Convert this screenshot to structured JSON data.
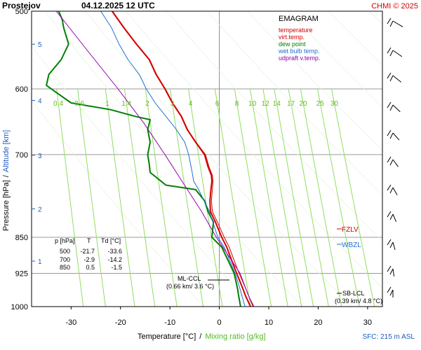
{
  "header": {
    "station": "Prostejov",
    "datetime": "04.12.2025 12 UTC",
    "credit": "CHMI © 2025"
  },
  "legend": {
    "title": "EMAGRAM",
    "items": [
      {
        "label": "temperature",
        "color": "#d40000"
      },
      {
        "label": "virt.temp.",
        "color": "#d40000"
      },
      {
        "label": "dew point",
        "color": "#008000"
      },
      {
        "label": "wet bulb temp.",
        "color": "#1f6fd0"
      },
      {
        "label": "udpraft v.temp.",
        "color": "#9400b0"
      }
    ]
  },
  "axes": {
    "xlabel_temperature": "Temperature [°C]",
    "xlabel_sep": "/",
    "xlabel_mixing": "Mixing ratio [g/kg]",
    "ylabel_pressure": "Pressure [hPa]",
    "ylabel_sep": "/",
    "ylabel_altitude": "Altitude [km]",
    "surface_note": "SFC: 215 m ASL"
  },
  "table": {
    "header": [
      "p [hPa]",
      "T",
      "Td [°C]"
    ],
    "rows": [
      [
        "500",
        "-21.7",
        "-33.6"
      ],
      [
        "700",
        "-2.9",
        "-14.2"
      ],
      [
        "850",
        "0.5",
        "-1.5"
      ]
    ]
  },
  "annotations": {
    "fzlv": "FZLV",
    "wbzl": "WBZL",
    "ml_ccl": "ML-CCL",
    "ml_ccl_value": "(0.66 km/ 3.6 °C)",
    "sb_lcl": "SB-LCL",
    "sb_lcl_value": "(0.39 km/ 4.8 °C)"
  },
  "chart_data": {
    "type": "line",
    "title": "EMAGRAM",
    "x_axis": {
      "label": "Temperature [°C]",
      "range": [
        -38,
        33
      ],
      "ticks": [
        -30,
        -20,
        -10,
        0,
        10,
        20,
        30
      ]
    },
    "y_axis": {
      "label": "Pressure [hPa]",
      "scale": "log",
      "range": [
        1000,
        500
      ],
      "ticks": [
        500,
        600,
        700,
        850,
        925,
        1000
      ]
    },
    "altitude_ticks_km": [
      1,
      2,
      3,
      4,
      5
    ],
    "mixing_ratio_labels": [
      "0.4",
      "0.6",
      "1",
      "1.4",
      "2",
      "3",
      "4",
      "6",
      "8",
      "10",
      "12",
      "14",
      "17",
      "20",
      "25",
      "30"
    ],
    "series": [
      {
        "name": "temperature",
        "color": "#d40000",
        "points": [
          [
            1000,
            6.3
          ],
          [
            975,
            5.3
          ],
          [
            960,
            4.8
          ],
          [
            925,
            3.5
          ],
          [
            900,
            2.6
          ],
          [
            870,
            1.5
          ],
          [
            850,
            0.5
          ],
          [
            820,
            -0.8
          ],
          [
            800,
            -1.8
          ],
          [
            780,
            -1.9
          ],
          [
            760,
            -1.7
          ],
          [
            745,
            -1.5
          ],
          [
            735,
            -1.6
          ],
          [
            720,
            -2.3
          ],
          [
            700,
            -3.0
          ],
          [
            680,
            -4.8
          ],
          [
            660,
            -6.5
          ],
          [
            640,
            -7.7
          ],
          [
            620,
            -9.5
          ],
          [
            600,
            -11.0
          ],
          [
            580,
            -12.8
          ],
          [
            560,
            -14.2
          ],
          [
            540,
            -16.8
          ],
          [
            520,
            -19.3
          ],
          [
            500,
            -21.7
          ]
        ]
      },
      {
        "name": "virt.temp.",
        "color": "#d40000",
        "points": [
          [
            1000,
            7.0
          ],
          [
            975,
            5.9
          ],
          [
            960,
            5.4
          ],
          [
            925,
            4.0
          ],
          [
            900,
            3.1
          ],
          [
            870,
            2.0
          ],
          [
            850,
            1.0
          ],
          [
            820,
            -0.4
          ],
          [
            800,
            -1.4
          ],
          [
            780,
            -1.6
          ],
          [
            760,
            -1.4
          ],
          [
            745,
            -1.3
          ],
          [
            735,
            -1.4
          ],
          [
            720,
            -2.1
          ],
          [
            700,
            -2.8
          ],
          [
            680,
            -4.7
          ],
          [
            660,
            -6.4
          ],
          [
            640,
            -7.6
          ],
          [
            620,
            -9.4
          ],
          [
            600,
            -10.9
          ],
          [
            580,
            -12.7
          ],
          [
            560,
            -14.1
          ],
          [
            540,
            -16.7
          ],
          [
            520,
            -19.2
          ],
          [
            500,
            -21.6
          ]
        ]
      },
      {
        "name": "dew point",
        "color": "#008000",
        "points": [
          [
            1000,
            4.3
          ],
          [
            975,
            3.9
          ],
          [
            960,
            3.7
          ],
          [
            925,
            3.0
          ],
          [
            900,
            1.9
          ],
          [
            870,
            0.5
          ],
          [
            850,
            -1.5
          ],
          [
            820,
            -1.2
          ],
          [
            800,
            -2.3
          ],
          [
            780,
            -3.0
          ],
          [
            760,
            -4.8
          ],
          [
            752,
            -10.8
          ],
          [
            745,
            -11.8
          ],
          [
            730,
            -14.0
          ],
          [
            715,
            -14.2
          ],
          [
            700,
            -14.5
          ],
          [
            680,
            -14.0
          ],
          [
            660,
            -14.5
          ],
          [
            645,
            -14.0
          ],
          [
            640,
            -17.0
          ],
          [
            630,
            -22.0
          ],
          [
            620,
            -30.0
          ],
          [
            605,
            -33.0
          ],
          [
            595,
            -35.0
          ],
          [
            580,
            -34.5
          ],
          [
            560,
            -32.0
          ],
          [
            540,
            -30.5
          ],
          [
            520,
            -31.5
          ],
          [
            510,
            -31.8
          ],
          [
            500,
            -32.5
          ]
        ]
      },
      {
        "name": "wet bulb temp.",
        "color": "#1f6fd0",
        "points": [
          [
            1000,
            5.2
          ],
          [
            960,
            4.2
          ],
          [
            925,
            3.2
          ],
          [
            870,
            1.0
          ],
          [
            850,
            -0.3
          ],
          [
            800,
            -2.0
          ],
          [
            760,
            -4.2
          ],
          [
            745,
            -5.2
          ],
          [
            730,
            -5.5
          ],
          [
            700,
            -6.2
          ],
          [
            680,
            -7.0
          ],
          [
            660,
            -8.7
          ],
          [
            640,
            -10.8
          ],
          [
            620,
            -13.0
          ],
          [
            600,
            -14.8
          ],
          [
            580,
            -16.2
          ],
          [
            560,
            -18.5
          ],
          [
            540,
            -20.3
          ],
          [
            520,
            -21.8
          ],
          [
            500,
            -24.0
          ]
        ]
      },
      {
        "name": "udpraft v.temp.",
        "color": "#9400b0",
        "points": [
          [
            1000,
            6.8
          ],
          [
            960,
            5.4
          ],
          [
            925,
            4.2
          ],
          [
            850,
            -0.6
          ],
          [
            800,
            -3.6
          ],
          [
            750,
            -7.2
          ],
          [
            700,
            -11.0
          ],
          [
            650,
            -15.3
          ],
          [
            600,
            -20.5
          ],
          [
            550,
            -26.5
          ],
          [
            500,
            -33.0
          ]
        ]
      }
    ]
  }
}
